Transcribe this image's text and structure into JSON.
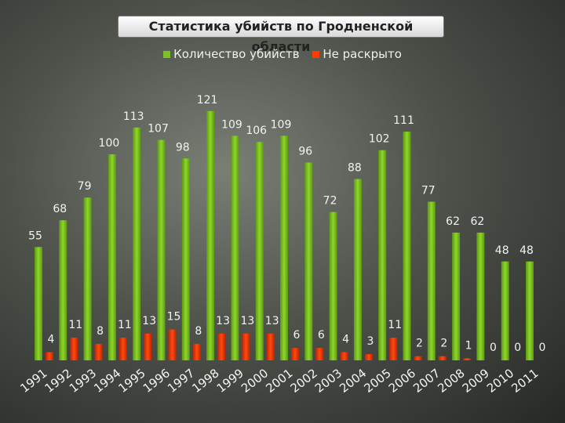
{
  "chart_data": {
    "type": "bar",
    "title": "Статистика убийств по Гродненской области",
    "legend_position": "top",
    "categories": [
      "1991",
      "1992",
      "1993",
      "1994",
      "1995",
      "1996",
      "1997",
      "1998",
      "1999",
      "2000",
      "2001",
      "2002",
      "2003",
      "2004",
      "2005",
      "2006",
      "2007",
      "2008",
      "2009",
      "2010",
      "2011"
    ],
    "series": [
      {
        "name": "Количество убийств",
        "color": "#7bc222",
        "values": [
          55,
          68,
          79,
          100,
          113,
          107,
          98,
          121,
          109,
          106,
          109,
          96,
          72,
          88,
          102,
          111,
          77,
          62,
          62,
          48,
          48
        ]
      },
      {
        "name": "Не раскрыто",
        "color": "#ff3b00",
        "values": [
          4,
          11,
          8,
          11,
          13,
          15,
          8,
          13,
          13,
          13,
          6,
          6,
          4,
          3,
          11,
          2,
          2,
          1,
          0,
          0,
          0
        ]
      }
    ],
    "ylim": [
      0,
      125
    ],
    "grid": false
  }
}
